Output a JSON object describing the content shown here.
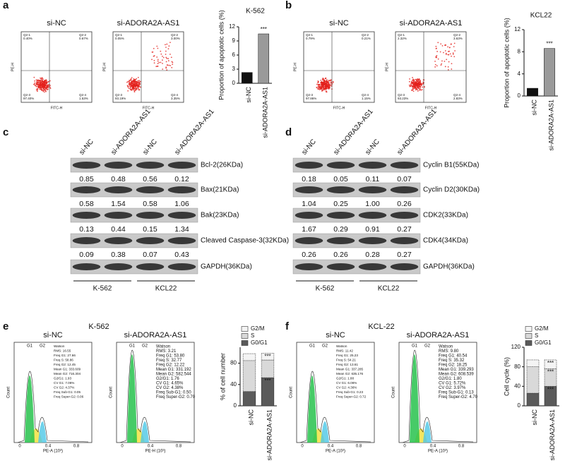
{
  "panel_labels": [
    "a",
    "b",
    "c",
    "d",
    "e",
    "f"
  ],
  "flow_plots": [
    {
      "title": "si-NC",
      "x_label": "FITC-H",
      "y_label": "PE-H",
      "quadrants": [
        {
          "name": "Q2-1",
          "value": "0.40%"
        },
        {
          "name": "Q2-2",
          "value": "0.67%"
        },
        {
          "name": "Q2-3",
          "value": "97.40%"
        },
        {
          "name": "Q2-4",
          "value": "1.53%"
        }
      ]
    },
    {
      "title": "si-ADORA2A-AS1",
      "x_label": "FITC-H",
      "y_label": "PE-H",
      "quadrants": [
        {
          "name": "Q2-1",
          "value": "0.05%"
        },
        {
          "name": "Q2-2",
          "value": "3.00%"
        },
        {
          "name": "Q2-3",
          "value": "93.19%"
        },
        {
          "name": "Q2-4",
          "value": "3.35%"
        }
      ]
    },
    {
      "title": "si-NC",
      "x_label": "FITC-H",
      "y_label": "PE-H",
      "quadrants": [
        {
          "name": "Q2-1",
          "value": "0.79%"
        },
        {
          "name": "Q2-2",
          "value": "0.21%"
        },
        {
          "name": "Q2-3",
          "value": "97.86%"
        },
        {
          "name": "Q2-4",
          "value": "1.15%"
        }
      ]
    },
    {
      "title": "si-ADORA2A-AS1",
      "x_label": "FITC-H",
      "y_label": "PE-H",
      "quadrants": [
        {
          "name": "Q2-1",
          "value": "2.32%"
        },
        {
          "name": "Q2-2",
          "value": "3.63%"
        },
        {
          "name": "Q2-3",
          "value": "93.23%"
        },
        {
          "name": "Q2-4",
          "value": "2.83%"
        }
      ]
    }
  ],
  "blots": [
    {
      "columns": [
        "si-NC",
        "si-ADORA2A-AS1",
        "si-NC",
        "si-ADORA2A-AS1"
      ],
      "groups": [
        "K-562",
        "KCL22"
      ],
      "rows": [
        {
          "label": "Bcl-2(26KDa)",
          "values": [
            "0.85",
            "0.48",
            "0.56",
            "0.12"
          ]
        },
        {
          "label": "Bax(21KDa)",
          "values": [
            "0.58",
            "1.54",
            "0.58",
            "1.06"
          ]
        },
        {
          "label": "Bak(23KDa)",
          "values": [
            "0.13",
            "0.44",
            "0.15",
            "1.34"
          ]
        },
        {
          "label": "Cleaved Caspase-3(32KDa)",
          "values": [
            "0.09",
            "0.38",
            "0.07",
            "0.43"
          ]
        },
        {
          "label": "GAPDH(36KDa)",
          "values": []
        }
      ]
    },
    {
      "columns": [
        "si-NC",
        "si-ADORA2A-AS1",
        "si-NC",
        "si-ADORA2A-AS1"
      ],
      "groups": [
        "K-562",
        "KCL22"
      ],
      "rows": [
        {
          "label": "Cyclin B1(55KDa)",
          "values": [
            "0.18",
            "0.05",
            "0.11",
            "0.07"
          ]
        },
        {
          "label": "Cyclin D2(30KDa)",
          "values": [
            "1.04",
            "0.25",
            "1.00",
            "0.26"
          ]
        },
        {
          "label": "CDK2(33KDa)",
          "values": [
            "1.67",
            "0.29",
            "0.91",
            "0.27"
          ]
        },
        {
          "label": "CDK4(34KDa)",
          "values": [
            "0.26",
            "0.26",
            "0.28",
            "0.27"
          ]
        },
        {
          "label": "GAPDH(36KDa)",
          "values": []
        }
      ]
    }
  ],
  "cycle_plots": [
    {
      "title": "K-562",
      "plots": [
        {
          "title": "si-NC",
          "x_label": "PE-A (10³)",
          "y_label": "Count",
          "x_ticks": [
            "0",
            "0.4",
            "0.8"
          ],
          "peaks": [
            "G1",
            "G2"
          ],
          "stats": [
            "Watson",
            "RMS: 16.55",
            "Freq G1: 27.66",
            "Freq S: 58.86",
            "Freq G2: 12.45",
            "Mean G1: 333.609",
            "Mean G2: 716.304",
            "G2/G1: 1.93",
            "CV G1: 7.06%",
            "CV G2: 4.37%",
            "Freq Sub-G1: 0.05",
            "Freq Super-G2: 0.06"
          ]
        },
        {
          "title": "si-ADORA2A-AS1",
          "x_label": "PE-H (10³)",
          "y_label": "Count",
          "x_ticks": [
            "0",
            "0.4",
            "0.8"
          ],
          "peaks": [
            "G1",
            "G2"
          ],
          "stats": [
            "Watson",
            "RMS: 3.21",
            "Freq G1: 53.80",
            "Freq S: 32.77",
            "Freq G2: 12.22",
            "Mean G1: 331.192",
            "Mean G2: 582.544",
            "G2/G1: 1.76",
            "CV G1: 4.65%",
            "CV G2: 4.38%",
            "Freq Sub-G1: 0.50",
            "Freq Super-G2: 0.70"
          ]
        }
      ]
    },
    {
      "title": "KCL-22",
      "plots": [
        {
          "title": "si-NC",
          "x_label": "PE-A (10³)",
          "y_label": "Count",
          "x_ticks": [
            "0",
            "0.4",
            "0.8"
          ],
          "peaks": [
            "G1",
            "G2"
          ],
          "stats": [
            "Watson",
            "RMS: 11.42",
            "Freq G1: 25.23",
            "Freq S: 54.21",
            "Freq G2: 13.61",
            "Mean G1: 337.285",
            "Mean G2: 635.176",
            "G2/G1: 1.88",
            "CV G1: 6.06%",
            "CV G2: 4.36%",
            "Freq Sub-G1: 0.23",
            "Freq Super-G2: 0.72"
          ]
        },
        {
          "title": "si-ADORA2A-AS1",
          "x_label": "PE-A (10³)",
          "y_label": "Count",
          "x_ticks": [
            "0",
            "0.4",
            "0.8"
          ],
          "peaks": [
            "G1",
            "G2"
          ],
          "stats": [
            "Watson",
            "RMS: 9.80",
            "Freq G1: 40.54",
            "Freq S: 35.32",
            "Freq G2: 18.25",
            "Mean G1: 339.293",
            "Mean G2: 608.539",
            "G2/G1: 1.80",
            "CV G1: 5.72%",
            "CV G2: 3.97%",
            "Freq Sub-G1: 0.13",
            "Freq Super-G2: 4.70"
          ]
        }
      ]
    }
  ],
  "chart_data": [
    {
      "type": "bar",
      "title": "K-562",
      "y_label": "Proportion of apoptotic cells (%)",
      "categories": [
        "si-NC",
        "si-ADORA2A-AS1"
      ],
      "values": [
        2.3,
        10.5
      ],
      "colors": [
        "#111111",
        "#9a9a9a"
      ],
      "ylim": [
        0,
        12
      ],
      "yticks": [
        0,
        3,
        6,
        9,
        12
      ],
      "annotation": "***"
    },
    {
      "type": "bar",
      "title": "KCL22",
      "y_label": "Proportion of apoptotic cells (%)",
      "categories": [
        "si-NC",
        "si-ADORA2A-AS1"
      ],
      "values": [
        1.4,
        8.6
      ],
      "colors": [
        "#111111",
        "#9a9a9a"
      ],
      "ylim": [
        0,
        12
      ],
      "yticks": [
        0,
        4,
        8,
        12
      ],
      "annotation": "***"
    },
    {
      "type": "stacked_bar",
      "y_label": "% of cell number",
      "categories": [
        "si-NC",
        "si-ADORA2A-AS1"
      ],
      "ylim": [
        0,
        110
      ],
      "yticks": [
        0,
        40,
        80
      ],
      "series": [
        {
          "name": "G0/G1",
          "color": "#5a5a5a",
          "values": [
            27,
            53
          ]
        },
        {
          "name": "S",
          "color": "#d9d9d9",
          "values": [
            58,
            33
          ]
        },
        {
          "name": "G2/M",
          "color": "#f4f4f4",
          "values": [
            13,
            13
          ]
        }
      ],
      "annotations": [
        {
          "text": "***",
          "series": "G2/M"
        },
        {
          "text": "***",
          "series": "G0/G1"
        }
      ]
    },
    {
      "type": "stacked_bar",
      "y_label": "Cell cycle (%)",
      "categories": [
        "si-NC",
        "si-ADORA2A-AS1"
      ],
      "ylim": [
        0,
        120
      ],
      "yticks": [
        0,
        40,
        80,
        120
      ],
      "series": [
        {
          "name": "G0/G1",
          "color": "#5a5a5a",
          "values": [
            26,
            40
          ]
        },
        {
          "name": "S",
          "color": "#d9d9d9",
          "values": [
            54,
            36
          ]
        },
        {
          "name": "G2/M",
          "color": "#f4f4f4",
          "values": [
            14,
            18
          ]
        }
      ],
      "annotations": [
        {
          "text": "***",
          "series": "G2/M"
        },
        {
          "text": "***",
          "series": "S"
        },
        {
          "text": "***",
          "series": "G0/G1"
        }
      ]
    }
  ]
}
